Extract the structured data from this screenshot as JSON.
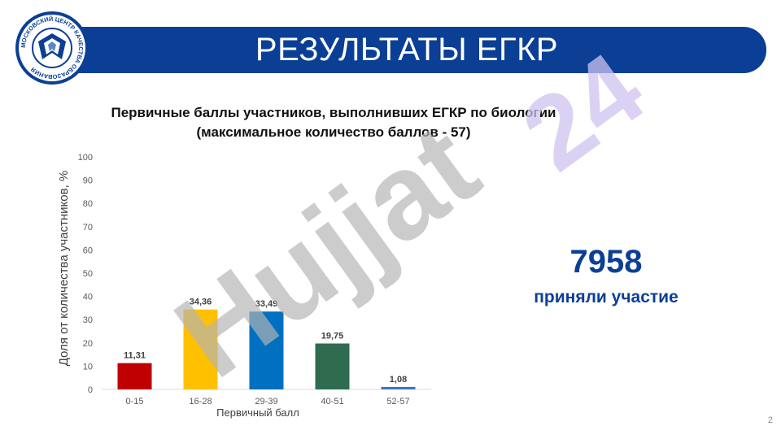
{
  "header": {
    "title": "РЕЗУЛЬТАТЫ ЕГКР",
    "logo_text": "МОСКОВСКИЙ ЦЕНТР КАЧЕСТВА ОБРАЗОВАНИЯ"
  },
  "chart_data": {
    "type": "bar",
    "title": "Первичные баллы участников, выполнивших ЕГКР по биологии",
    "subtitle": "(максимальное количество баллов - 57)",
    "xlabel": "Первичный балл",
    "ylabel": "Доля от количества участников, %",
    "categories": [
      "0-15",
      "16-28",
      "29-39",
      "40-51",
      "52-57"
    ],
    "values": [
      11.31,
      34.36,
      33.49,
      19.75,
      1.08
    ],
    "value_labels": [
      "11,31",
      "34,36",
      "33,49",
      "19,75",
      "1,08"
    ],
    "colors": [
      "#c00000",
      "#ffc000",
      "#0070c0",
      "#2e6b4f",
      "#4472c4"
    ],
    "ylim": [
      0,
      100
    ],
    "yticks": [
      "0",
      "10",
      "20",
      "30",
      "40",
      "50",
      "60",
      "70",
      "80",
      "90",
      "100"
    ],
    "grid": false
  },
  "stat": {
    "number": "7958",
    "label": "приняли участие"
  },
  "page_number": "2",
  "watermark": {
    "text": "Hujjat",
    "suffix": "24"
  },
  "colors": {
    "brand": "#0b3f96",
    "watermark_gray": "#b4b4b4",
    "watermark_purple": "#cfc3ef"
  }
}
